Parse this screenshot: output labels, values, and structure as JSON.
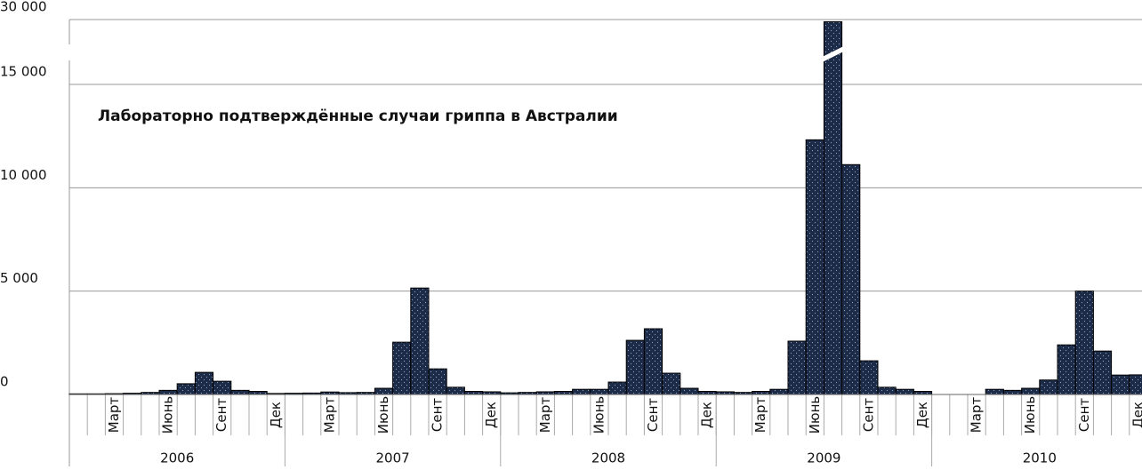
{
  "chart_data": {
    "type": "bar",
    "title": "Лабораторно подтверждённые случаи гриппа в Австралии",
    "categories": [
      null,
      null,
      "Март",
      null,
      null,
      "Июнь",
      null,
      null,
      "Сент",
      null,
      null,
      "Дек",
      null,
      null,
      "Март",
      null,
      null,
      "Июнь",
      null,
      null,
      "Сент",
      null,
      null,
      "Дек",
      null,
      null,
      "Март",
      null,
      null,
      "Июнь",
      null,
      null,
      "Сент",
      null,
      null,
      "Дек",
      null,
      null,
      "Март",
      null,
      null,
      "Июнь",
      null,
      null,
      "Сент",
      null,
      null,
      "Дек",
      null,
      null,
      "Март",
      null,
      null,
      "Июнь",
      null,
      null,
      "Сент",
      null,
      null,
      "Дек"
    ],
    "years": [
      "2006",
      "2007",
      "2008",
      "2009",
      "2010"
    ],
    "values": [
      30,
      30,
      40,
      60,
      100,
      200,
      520,
      1070,
      640,
      200,
      150,
      50,
      60,
      70,
      120,
      90,
      100,
      300,
      2530,
      5150,
      1240,
      350,
      150,
      130,
      80,
      100,
      130,
      150,
      250,
      250,
      600,
      2620,
      3180,
      1030,
      300,
      150,
      130,
      100,
      150,
      250,
      2580,
      12320,
      29500,
      11120,
      1630,
      350,
      250,
      150,
      null,
      null,
      null,
      250,
      200,
      300,
      700,
      2400,
      5000,
      2100,
      940,
      950
    ],
    "color": "#1c2b47",
    "ylim": [
      0,
      30000
    ],
    "yticks": [
      {
        "value": 0,
        "label": "0"
      },
      {
        "value": 5000,
        "label": "5 000"
      },
      {
        "value": 10000,
        "label": "10 000"
      },
      {
        "value": 15000,
        "label": "15 000"
      },
      {
        "value": 30000,
        "label": "30 000"
      }
    ],
    "axis_break": true,
    "grid": true
  }
}
